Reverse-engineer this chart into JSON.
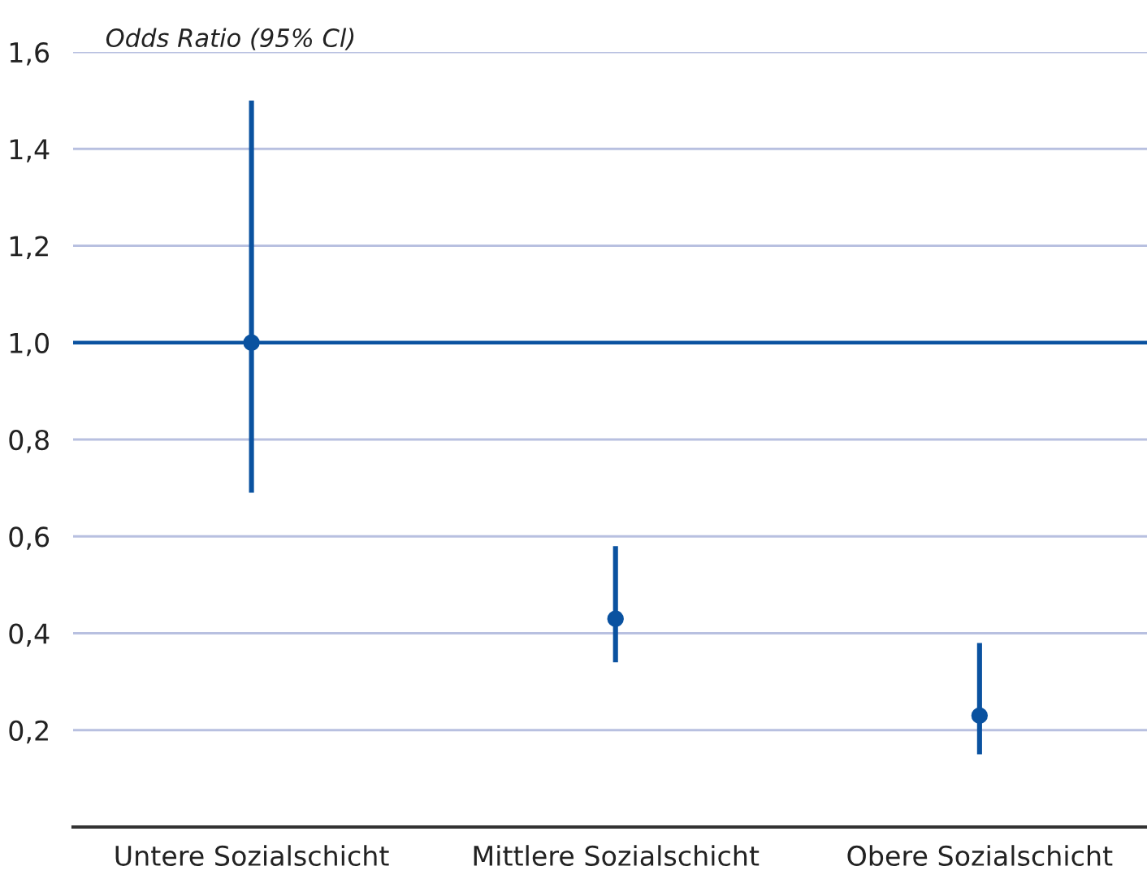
{
  "chart_data": {
    "type": "scatter",
    "ylabel": "Odds Ratio (95% Cl)",
    "categories": [
      "Untere Sozialschicht",
      "Mittlere Sozialschicht",
      "Obere Sozialschicht"
    ],
    "values": [
      1.0,
      0.43,
      0.23
    ],
    "errors": [
      [
        0.69,
        1.5
      ],
      [
        0.34,
        0.58
      ],
      [
        0.15,
        0.38
      ]
    ],
    "color": "#0a52a0",
    "marker": "circle",
    "ylim": [
      0,
      1.6
    ],
    "yticks": [
      {
        "value": 0.2,
        "label": "0,2"
      },
      {
        "value": 0.4,
        "label": "0,4"
      },
      {
        "value": 0.6,
        "label": "0,6"
      },
      {
        "value": 0.8,
        "label": "0,8"
      },
      {
        "value": 1.0,
        "label": "1,0"
      },
      {
        "value": 1.2,
        "label": "1,2"
      },
      {
        "value": 1.4,
        "label": "1,4"
      },
      {
        "value": 1.6,
        "label": "1,6"
      }
    ],
    "grid": "y",
    "ref_lines": [
      {
        "axis": "y",
        "value": 1.0,
        "color": "#0a52a0"
      }
    ]
  }
}
